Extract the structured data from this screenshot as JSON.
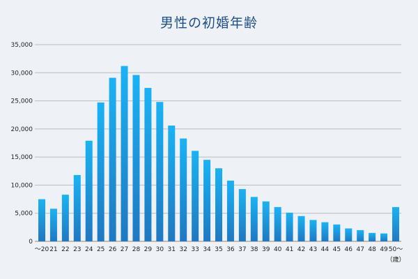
{
  "chart_data": {
    "type": "bar",
    "title": "男性の初婚年齢",
    "xlabel": "",
    "ylabel": "",
    "x_unit": "（歳）",
    "categories": [
      "～20",
      "21",
      "22",
      "23",
      "24",
      "25",
      "26",
      "27",
      "28",
      "29",
      "30",
      "31",
      "32",
      "33",
      "34",
      "35",
      "36",
      "37",
      "38",
      "39",
      "40",
      "41",
      "42",
      "43",
      "44",
      "45",
      "46",
      "47",
      "48",
      "49",
      "50～"
    ],
    "values": [
      7500,
      5800,
      8300,
      11800,
      17900,
      24700,
      29100,
      31200,
      29600,
      27300,
      24800,
      20600,
      18300,
      16100,
      14500,
      13000,
      10800,
      9300,
      7900,
      7100,
      6100,
      5100,
      4500,
      3800,
      3400,
      3000,
      2300,
      2000,
      1500,
      1400,
      6100
    ],
    "ylim": [
      0,
      35000
    ],
    "yticks": [
      0,
      5000,
      10000,
      15000,
      20000,
      25000,
      30000,
      35000
    ],
    "ytick_labels": [
      "0",
      "5,000",
      "10,000",
      "15,000",
      "20,000",
      "25,000",
      "30,000",
      "35,000"
    ],
    "grid": true,
    "legend": "none",
    "colors": {
      "bar_top": "#1ab3f5",
      "bar_bottom": "#1f78c1",
      "grid": "#b8bcc4",
      "title": "#1f4f86",
      "background": "#eef1f5"
    }
  }
}
